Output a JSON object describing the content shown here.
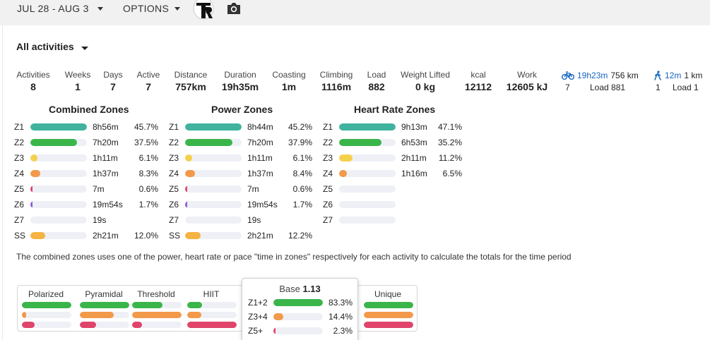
{
  "topbar": {
    "date_range": "JUL 28 - AUG 3",
    "options_label": "OPTIONS",
    "logo_text": "TR"
  },
  "filter": {
    "label": "All activities"
  },
  "stats": [
    {
      "label": "Activities",
      "value": "8"
    },
    {
      "label": "Weeks",
      "value": "1"
    },
    {
      "label": "Days",
      "value": "7"
    },
    {
      "label": "Active",
      "value": "7"
    },
    {
      "label": "Distance",
      "value": "757km"
    },
    {
      "label": "Duration",
      "value": "19h35m"
    },
    {
      "label": "Coasting",
      "value": "1m"
    },
    {
      "label": "Climbing",
      "value": "1116m"
    },
    {
      "label": "Load",
      "value": "882"
    },
    {
      "label": "Weight Lifted",
      "value": "0 kg"
    },
    {
      "label": "kcal",
      "value": "12112"
    },
    {
      "label": "Work",
      "value": "12605 kJ"
    }
  ],
  "sports": [
    {
      "icon": "bicycle-icon",
      "time": "19h23m",
      "distance": "756 km",
      "count": "7",
      "load": "Load 881"
    },
    {
      "icon": "walking-icon",
      "time": "12m",
      "distance": "1 km",
      "count": "1",
      "load": "Load 1"
    }
  ],
  "zone_tables": [
    {
      "title": "Combined Zones",
      "rows": [
        {
          "zone": "Z1",
          "time": "8h56m",
          "pct": "45.7%",
          "fill": 1.0,
          "color": "#3fb39e"
        },
        {
          "zone": "Z2",
          "time": "7h20m",
          "pct": "37.5%",
          "fill": 0.82,
          "color": "#3ab54a"
        },
        {
          "zone": "Z3",
          "time": "1h11m",
          "pct": "6.1%",
          "fill": 0.13,
          "color": "#f5d04a"
        },
        {
          "zone": "Z4",
          "time": "1h37m",
          "pct": "8.3%",
          "fill": 0.18,
          "color": "#f2994a"
        },
        {
          "zone": "Z5",
          "time": "7m",
          "pct": "0.6%",
          "fill": 0.02,
          "color": "#e0446a"
        },
        {
          "zone": "Z6",
          "time": "19m54s",
          "pct": "1.7%",
          "fill": 0.04,
          "color": "#8e5bd6"
        },
        {
          "zone": "Z7",
          "time": "19s",
          "pct": "",
          "fill": 0,
          "color": "#333333"
        },
        {
          "zone": "SS",
          "time": "2h21m",
          "pct": "12.0%",
          "fill": 0.26,
          "color": "#f5b342"
        }
      ]
    },
    {
      "title": "Power Zones",
      "rows": [
        {
          "zone": "Z1",
          "time": "8h44m",
          "pct": "45.2%",
          "fill": 1.0,
          "color": "#3fb39e"
        },
        {
          "zone": "Z2",
          "time": "7h20m",
          "pct": "37.9%",
          "fill": 0.84,
          "color": "#3ab54a"
        },
        {
          "zone": "Z3",
          "time": "1h11m",
          "pct": "6.1%",
          "fill": 0.13,
          "color": "#f5d04a"
        },
        {
          "zone": "Z4",
          "time": "1h37m",
          "pct": "8.4%",
          "fill": 0.18,
          "color": "#f2994a"
        },
        {
          "zone": "Z5",
          "time": "7m",
          "pct": "0.6%",
          "fill": 0.02,
          "color": "#e0446a"
        },
        {
          "zone": "Z6",
          "time": "19m54s",
          "pct": "1.7%",
          "fill": 0.04,
          "color": "#8e5bd6"
        },
        {
          "zone": "Z7",
          "time": "19s",
          "pct": "",
          "fill": 0,
          "color": "#333333"
        },
        {
          "zone": "SS",
          "time": "2h21m",
          "pct": "12.2%",
          "fill": 0.27,
          "color": "#f5b342"
        }
      ]
    },
    {
      "title": "Heart Rate Zones",
      "rows": [
        {
          "zone": "Z1",
          "time": "9h13m",
          "pct": "47.1%",
          "fill": 1.0,
          "color": "#3fb39e"
        },
        {
          "zone": "Z2",
          "time": "6h53m",
          "pct": "35.2%",
          "fill": 0.75,
          "color": "#3ab54a"
        },
        {
          "zone": "Z3",
          "time": "2h11m",
          "pct": "11.2%",
          "fill": 0.24,
          "color": "#f5d04a"
        },
        {
          "zone": "Z4",
          "time": "1h16m",
          "pct": "6.5%",
          "fill": 0.14,
          "color": "#f2994a"
        },
        {
          "zone": "Z5",
          "time": "",
          "pct": "",
          "fill": 0,
          "color": "#e0446a"
        },
        {
          "zone": "Z6",
          "time": "",
          "pct": "",
          "fill": 0,
          "color": "#8e5bd6"
        },
        {
          "zone": "Z7",
          "time": "",
          "pct": "",
          "fill": 0,
          "color": "#333333"
        }
      ]
    }
  ],
  "note": "The combined zones uses one of the power, heart rate or pace \"time in zones\" respectively for each activity to calculate the totals for the time period",
  "distributions": [
    {
      "label": "Polarized",
      "bars": [
        1.0,
        0.08,
        0.25
      ]
    },
    {
      "label": "Pyramidal",
      "bars": [
        1.0,
        0.68,
        0.33
      ]
    },
    {
      "label": "Threshold",
      "bars": [
        0.62,
        1.0,
        0.2
      ]
    },
    {
      "label": "HIIT",
      "bars": [
        0.3,
        0.28,
        1.0
      ]
    },
    {
      "label": "",
      "bars": [
        0.0,
        0.0,
        0.0
      ]
    },
    {
      "label": "Unique",
      "bars": [
        1.0,
        1.0,
        1.0
      ]
    }
  ],
  "distribution_colors": [
    "#3ab54a",
    "#f2994a",
    "#e0446a"
  ],
  "popup": {
    "title": "Base",
    "value": "1.13",
    "rows": [
      {
        "label": "Z1+2",
        "pct": "83.3%",
        "fill": 1.0,
        "color": "#3ab54a"
      },
      {
        "label": "Z3+4",
        "pct": "14.4%",
        "fill": 0.2,
        "color": "#f2994a"
      },
      {
        "label": "Z5+",
        "pct": "2.3%",
        "fill": 0.03,
        "color": "#e0446a"
      }
    ]
  }
}
